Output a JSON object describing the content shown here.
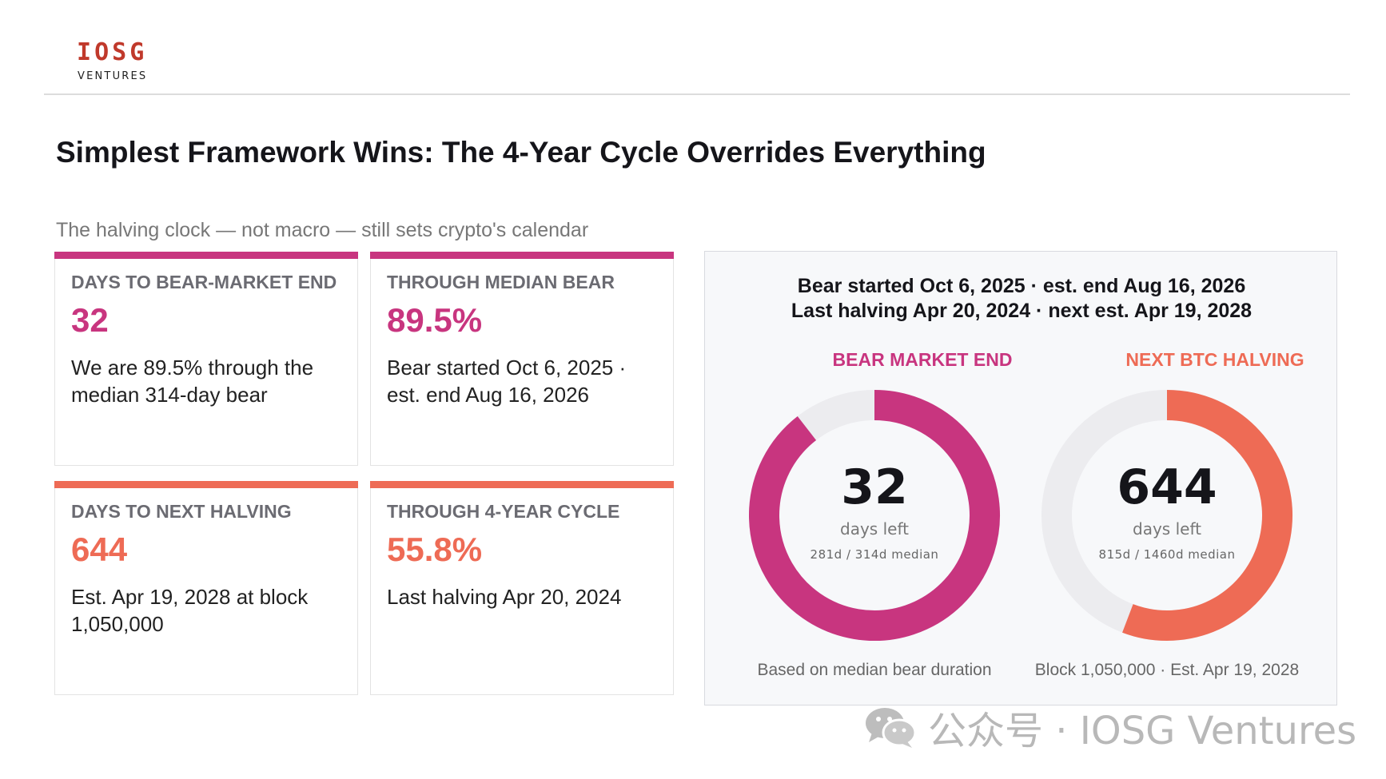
{
  "logo": {
    "mark": "IOSG",
    "sub": "VENTURES"
  },
  "title": "Simplest Framework Wins: The 4-Year Cycle Overrides Everything",
  "subtitle": "The halving clock — not macro — still sets crypto's calendar",
  "cards": [
    {
      "label": "DAYS TO BEAR-MARKET END",
      "value": "32",
      "desc": "We are 89.5% through the median 314-day bear",
      "color": "#c8357f"
    },
    {
      "label": "THROUGH MEDIAN BEAR",
      "value": "89.5%",
      "desc": "Bear started Oct 6, 2025 · est. end Aug 16, 2026",
      "color": "#c8357f"
    },
    {
      "label": "DAYS TO NEXT HALVING",
      "value": "644",
      "desc": "Est. Apr 19, 2028 at block 1,050,000",
      "color": "#ee6b55"
    },
    {
      "label": "THROUGH 4-YEAR CYCLE",
      "value": "55.8%",
      "desc": "Last halving Apr 20, 2024",
      "color": "#ee6b55"
    }
  ],
  "panel": {
    "header_line1": "Bear started Oct 6, 2025 · est. end Aug 16, 2026",
    "header_line2": "Last halving Apr 20, 2024 · next est. Apr 19, 2028",
    "donuts": [
      {
        "title": "BEAR MARKET END",
        "number": "32",
        "unit": "days left",
        "meta": "281d / 314d median",
        "progress": 0.895,
        "color": "#c8357f",
        "track_color": "#ececef",
        "footer": "Based on median bear duration"
      },
      {
        "title": "NEXT BTC HALVING",
        "number": "644",
        "unit": "days left",
        "meta": "815d / 1460d median",
        "progress": 0.558,
        "color": "#ee6b55",
        "track_color": "#ececef",
        "footer": "Block 1,050,000 · Est. Apr 19, 2028"
      }
    ]
  },
  "watermark": {
    "icon": "wechat-icon",
    "text": "公众号 · IOSG Ventures"
  }
}
